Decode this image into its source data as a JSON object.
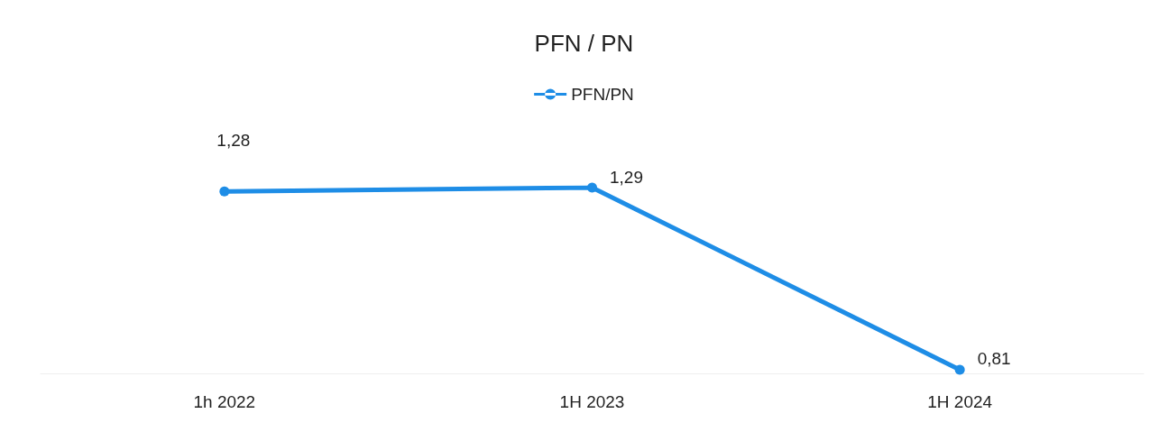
{
  "chart_data": {
    "type": "line",
    "title": "PFN / PN",
    "categories": [
      "1h 2022",
      "1H 2023",
      "1H 2024"
    ],
    "series": [
      {
        "name": "PFN/PN",
        "color": "#1e8de6",
        "values": [
          1.28,
          1.29,
          0.81
        ],
        "value_labels": [
          "1,28",
          "1,29",
          "0,81"
        ]
      }
    ],
    "legend": "top",
    "marker": "circle",
    "grid": false
  }
}
